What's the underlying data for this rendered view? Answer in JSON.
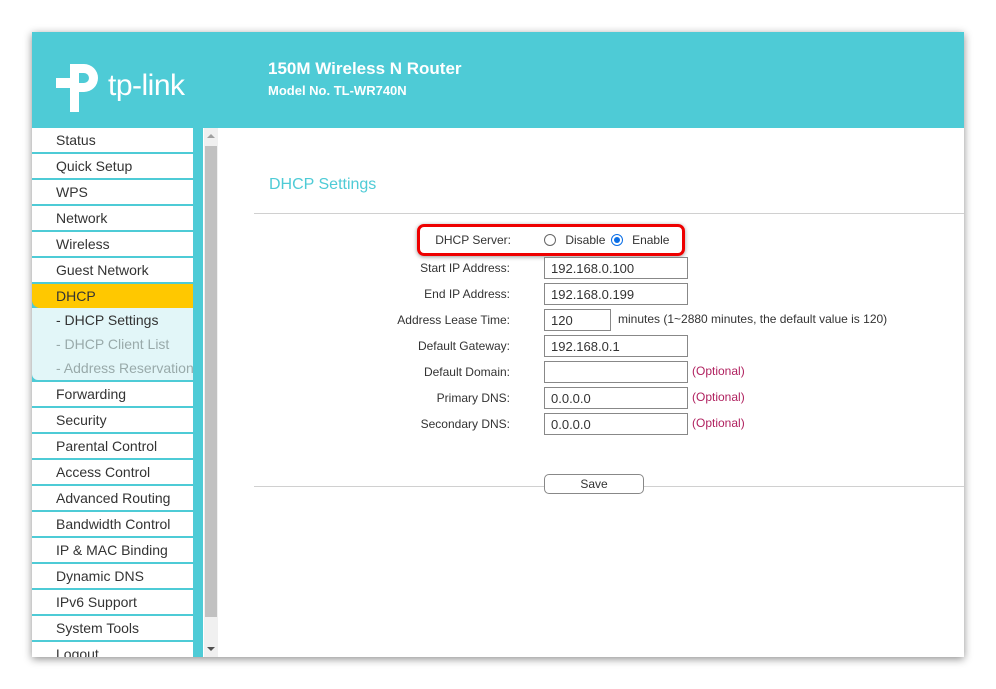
{
  "header": {
    "logo": "tp-link",
    "title": "150M Wireless N Router",
    "model": "Model No. TL-WR740N",
    "color": "#4ecbd6"
  },
  "sidebar": {
    "items_before": [
      "Status",
      "Quick Setup",
      "WPS",
      "Network",
      "Wireless",
      "Guest Network"
    ],
    "active": "DHCP",
    "subitems": [
      "- DHCP Settings",
      "- DHCP Client List",
      "- Address Reservation"
    ],
    "items_after": [
      "Forwarding",
      "Security",
      "Parental Control",
      "Access Control",
      "Advanced Routing",
      "Bandwidth Control",
      "IP & MAC Binding",
      "Dynamic DNS",
      "IPv6 Support",
      "System Tools",
      "Logout"
    ]
  },
  "main": {
    "title": "DHCP Settings",
    "dhcp_server": {
      "label": "DHCP Server:",
      "disable": "Disable",
      "enable": "Enable",
      "selected": "Enable"
    },
    "fields": [
      {
        "label": "Start IP Address:",
        "value": "192.168.0.100"
      },
      {
        "label": "End IP Address:",
        "value": "192.168.0.199"
      },
      {
        "label": "Address Lease Time:",
        "value": "120",
        "hint": "minutes (1~2880 minutes, the default value is 120)"
      },
      {
        "label": "Default Gateway:",
        "value": "192.168.0.1"
      },
      {
        "label": "Default Domain:",
        "value": "",
        "optional": "(Optional)"
      },
      {
        "label": "Primary DNS:",
        "value": "0.0.0.0",
        "optional": "(Optional)"
      },
      {
        "label": "Secondary DNS:",
        "value": "0.0.0.0",
        "optional": "(Optional)"
      }
    ],
    "save": "Save"
  }
}
